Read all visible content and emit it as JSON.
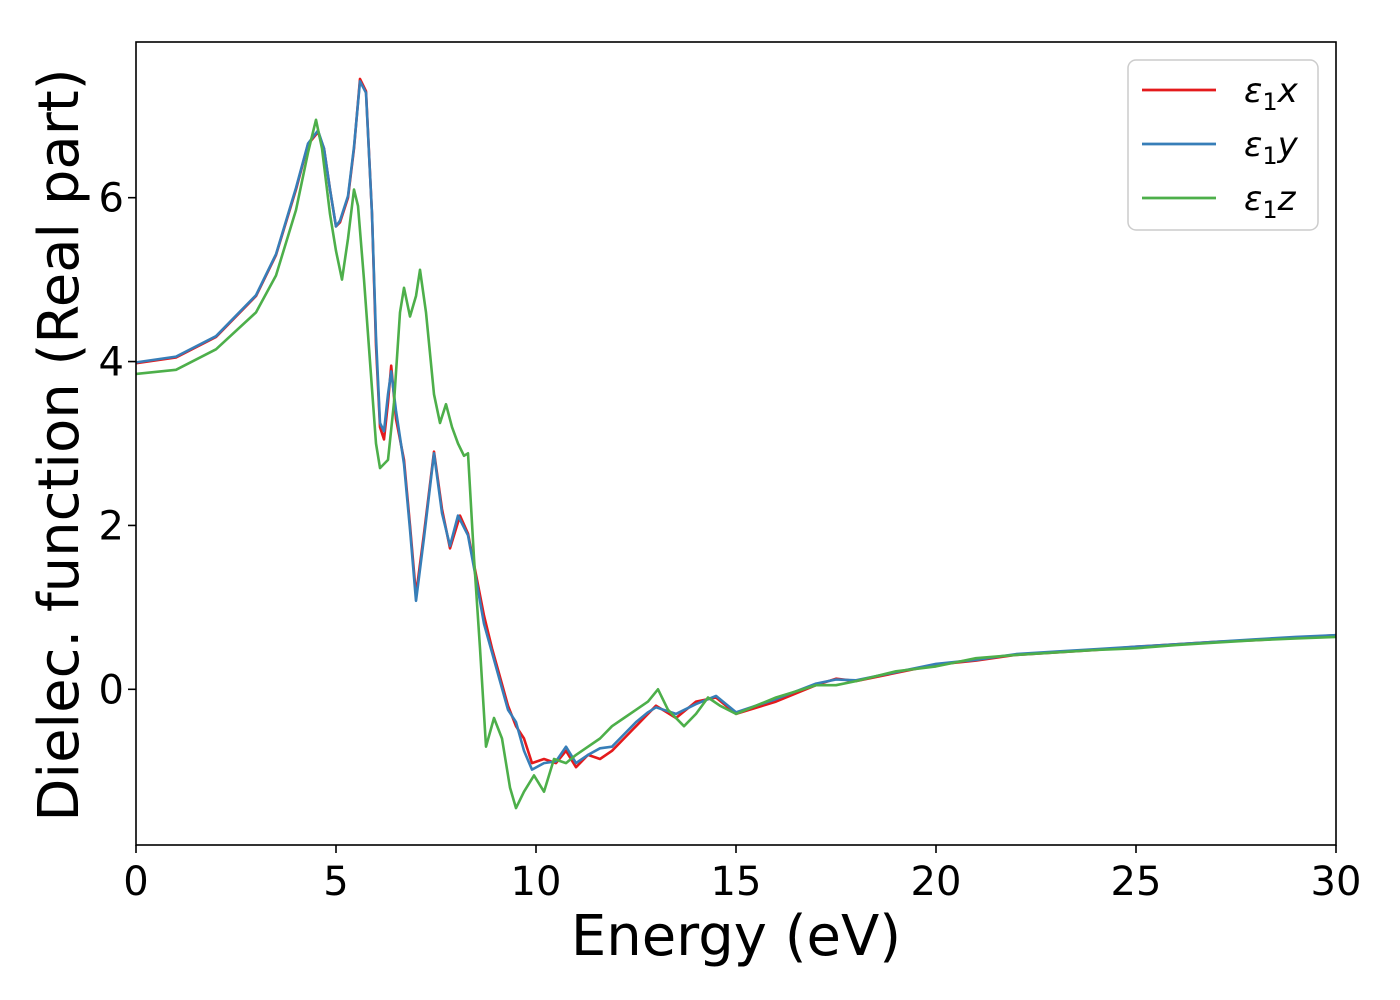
{
  "chart_data": {
    "type": "line",
    "xlabel": "Energy (eV)",
    "ylabel": "Dielec. function (Real part)",
    "xlim": [
      0,
      30
    ],
    "ylim": [
      -1.9,
      7.9
    ],
    "xticks": [
      0,
      5,
      10,
      15,
      20,
      25,
      30
    ],
    "xtick_labels": [
      "0",
      "5",
      "10",
      "15",
      "20",
      "25",
      "30"
    ],
    "yticks": [
      0,
      2,
      4,
      6
    ],
    "ytick_labels": [
      "0",
      "2",
      "4",
      "6"
    ],
    "grid": false,
    "legend_position": "top-right",
    "series": [
      {
        "name": "ε₁x",
        "legend_main": "ε",
        "legend_sub": "1",
        "legend_var": "x",
        "color": "#e41a1c",
        "points": [
          [
            0,
            3.98
          ],
          [
            1,
            4.05
          ],
          [
            2,
            4.3
          ],
          [
            3,
            4.8
          ],
          [
            3.5,
            5.3
          ],
          [
            4,
            6.1
          ],
          [
            4.3,
            6.65
          ],
          [
            4.55,
            6.8
          ],
          [
            4.7,
            6.6
          ],
          [
            4.85,
            6.1
          ],
          [
            5.0,
            5.65
          ],
          [
            5.1,
            5.7
          ],
          [
            5.3,
            6.0
          ],
          [
            5.45,
            6.6
          ],
          [
            5.6,
            7.45
          ],
          [
            5.75,
            7.3
          ],
          [
            5.9,
            5.8
          ],
          [
            6.0,
            4.2
          ],
          [
            6.1,
            3.2
          ],
          [
            6.2,
            3.05
          ],
          [
            6.3,
            3.5
          ],
          [
            6.38,
            3.95
          ],
          [
            6.5,
            3.3
          ],
          [
            6.7,
            2.8
          ],
          [
            6.85,
            2.0
          ],
          [
            7.0,
            1.15
          ],
          [
            7.2,
            1.9
          ],
          [
            7.45,
            2.9
          ],
          [
            7.65,
            2.2
          ],
          [
            7.85,
            1.72
          ],
          [
            8.1,
            2.12
          ],
          [
            8.3,
            1.9
          ],
          [
            8.5,
            1.4
          ],
          [
            8.7,
            0.9
          ],
          [
            8.9,
            0.5
          ],
          [
            9.1,
            0.15
          ],
          [
            9.3,
            -0.2
          ],
          [
            9.5,
            -0.45
          ],
          [
            9.7,
            -0.6
          ],
          [
            9.9,
            -0.9
          ],
          [
            10.2,
            -0.85
          ],
          [
            10.5,
            -0.9
          ],
          [
            10.75,
            -0.75
          ],
          [
            11.0,
            -0.95
          ],
          [
            11.3,
            -0.8
          ],
          [
            11.6,
            -0.85
          ],
          [
            11.9,
            -0.75
          ],
          [
            12.2,
            -0.6
          ],
          [
            12.5,
            -0.45
          ],
          [
            12.8,
            -0.3
          ],
          [
            13.0,
            -0.2
          ],
          [
            13.5,
            -0.35
          ],
          [
            14.0,
            -0.15
          ],
          [
            14.5,
            -0.1
          ],
          [
            15,
            -0.3
          ],
          [
            16,
            -0.15
          ],
          [
            17,
            0.05
          ],
          [
            17.5,
            0.13
          ],
          [
            18,
            0.1
          ],
          [
            19,
            0.2
          ],
          [
            20,
            0.3
          ],
          [
            21,
            0.35
          ],
          [
            22,
            0.42
          ],
          [
            23,
            0.45
          ],
          [
            24,
            0.48
          ],
          [
            25,
            0.52
          ],
          [
            26,
            0.55
          ],
          [
            27,
            0.58
          ],
          [
            28,
            0.6
          ],
          [
            29,
            0.63
          ],
          [
            30,
            0.66
          ]
        ]
      },
      {
        "name": "ε₁y",
        "legend_main": "ε",
        "legend_sub": "1",
        "legend_var": "y",
        "color": "#377eb8",
        "points": [
          [
            0,
            3.99
          ],
          [
            1,
            4.06
          ],
          [
            2,
            4.31
          ],
          [
            3,
            4.81
          ],
          [
            3.5,
            5.31
          ],
          [
            4,
            6.12
          ],
          [
            4.3,
            6.66
          ],
          [
            4.55,
            6.82
          ],
          [
            4.7,
            6.6
          ],
          [
            4.85,
            6.1
          ],
          [
            5.0,
            5.65
          ],
          [
            5.1,
            5.72
          ],
          [
            5.3,
            6.02
          ],
          [
            5.45,
            6.62
          ],
          [
            5.6,
            7.42
          ],
          [
            5.75,
            7.28
          ],
          [
            5.9,
            5.8
          ],
          [
            6.0,
            4.3
          ],
          [
            6.1,
            3.25
          ],
          [
            6.2,
            3.15
          ],
          [
            6.3,
            3.6
          ],
          [
            6.38,
            3.88
          ],
          [
            6.5,
            3.4
          ],
          [
            6.7,
            2.75
          ],
          [
            6.85,
            1.95
          ],
          [
            7.0,
            1.08
          ],
          [
            7.2,
            1.85
          ],
          [
            7.45,
            2.88
          ],
          [
            7.65,
            2.15
          ],
          [
            7.85,
            1.75
          ],
          [
            8.05,
            2.12
          ],
          [
            8.3,
            1.88
          ],
          [
            8.5,
            1.35
          ],
          [
            8.7,
            0.8
          ],
          [
            8.9,
            0.45
          ],
          [
            9.1,
            0.1
          ],
          [
            9.3,
            -0.25
          ],
          [
            9.5,
            -0.4
          ],
          [
            9.7,
            -0.75
          ],
          [
            9.9,
            -0.98
          ],
          [
            10.2,
            -0.9
          ],
          [
            10.5,
            -0.88
          ],
          [
            10.75,
            -0.7
          ],
          [
            11.0,
            -0.9
          ],
          [
            11.3,
            -0.8
          ],
          [
            11.6,
            -0.72
          ],
          [
            11.9,
            -0.7
          ],
          [
            12.2,
            -0.55
          ],
          [
            12.5,
            -0.4
          ],
          [
            12.8,
            -0.28
          ],
          [
            13.0,
            -0.22
          ],
          [
            13.5,
            -0.3
          ],
          [
            14.0,
            -0.18
          ],
          [
            14.5,
            -0.08
          ],
          [
            15,
            -0.28
          ],
          [
            16,
            -0.12
          ],
          [
            17,
            0.07
          ],
          [
            17.5,
            0.12
          ],
          [
            18,
            0.11
          ],
          [
            19,
            0.21
          ],
          [
            20,
            0.31
          ],
          [
            21,
            0.36
          ],
          [
            22,
            0.43
          ],
          [
            23,
            0.46
          ],
          [
            24,
            0.49
          ],
          [
            25,
            0.52
          ],
          [
            26,
            0.55
          ],
          [
            27,
            0.58
          ],
          [
            28,
            0.61
          ],
          [
            29,
            0.64
          ],
          [
            30,
            0.66
          ]
        ]
      },
      {
        "name": "ε₁z",
        "legend_main": "ε",
        "legend_sub": "1",
        "legend_var": "z",
        "color": "#4daf4a",
        "points": [
          [
            0,
            3.85
          ],
          [
            1,
            3.9
          ],
          [
            2,
            4.15
          ],
          [
            3,
            4.6
          ],
          [
            3.5,
            5.05
          ],
          [
            4,
            5.85
          ],
          [
            4.3,
            6.55
          ],
          [
            4.5,
            6.95
          ],
          [
            4.65,
            6.6
          ],
          [
            4.85,
            5.8
          ],
          [
            5.0,
            5.35
          ],
          [
            5.15,
            5.0
          ],
          [
            5.3,
            5.5
          ],
          [
            5.45,
            6.1
          ],
          [
            5.55,
            5.9
          ],
          [
            5.7,
            5.0
          ],
          [
            5.85,
            4.0
          ],
          [
            6.0,
            3.0
          ],
          [
            6.1,
            2.7
          ],
          [
            6.3,
            2.8
          ],
          [
            6.45,
            3.5
          ],
          [
            6.6,
            4.6
          ],
          [
            6.7,
            4.9
          ],
          [
            6.85,
            4.55
          ],
          [
            7.0,
            4.8
          ],
          [
            7.1,
            5.12
          ],
          [
            7.25,
            4.6
          ],
          [
            7.45,
            3.6
          ],
          [
            7.6,
            3.25
          ],
          [
            7.75,
            3.48
          ],
          [
            7.9,
            3.2
          ],
          [
            8.05,
            3.0
          ],
          [
            8.2,
            2.85
          ],
          [
            8.3,
            2.88
          ],
          [
            8.45,
            1.6
          ],
          [
            8.6,
            0.5
          ],
          [
            8.75,
            -0.7
          ],
          [
            8.95,
            -0.35
          ],
          [
            9.15,
            -0.6
          ],
          [
            9.35,
            -1.2
          ],
          [
            9.5,
            -1.45
          ],
          [
            9.7,
            -1.25
          ],
          [
            9.95,
            -1.05
          ],
          [
            10.2,
            -1.25
          ],
          [
            10.45,
            -0.85
          ],
          [
            10.75,
            -0.9
          ],
          [
            11.0,
            -0.8
          ],
          [
            11.3,
            -0.7
          ],
          [
            11.6,
            -0.6
          ],
          [
            11.9,
            -0.45
          ],
          [
            12.2,
            -0.35
          ],
          [
            12.5,
            -0.25
          ],
          [
            12.8,
            -0.15
          ],
          [
            13.05,
            0.0
          ],
          [
            13.3,
            -0.25
          ],
          [
            13.7,
            -0.45
          ],
          [
            14.0,
            -0.3
          ],
          [
            14.3,
            -0.1
          ],
          [
            14.6,
            -0.2
          ],
          [
            15,
            -0.3
          ],
          [
            16,
            -0.1
          ],
          [
            17,
            0.05
          ],
          [
            17.5,
            0.05
          ],
          [
            18,
            0.1
          ],
          [
            19,
            0.22
          ],
          [
            20,
            0.28
          ],
          [
            21,
            0.38
          ],
          [
            22,
            0.42
          ],
          [
            23,
            0.45
          ],
          [
            24,
            0.48
          ],
          [
            25,
            0.5
          ],
          [
            26,
            0.54
          ],
          [
            27,
            0.57
          ],
          [
            28,
            0.6
          ],
          [
            29,
            0.62
          ],
          [
            30,
            0.64
          ]
        ]
      }
    ]
  }
}
